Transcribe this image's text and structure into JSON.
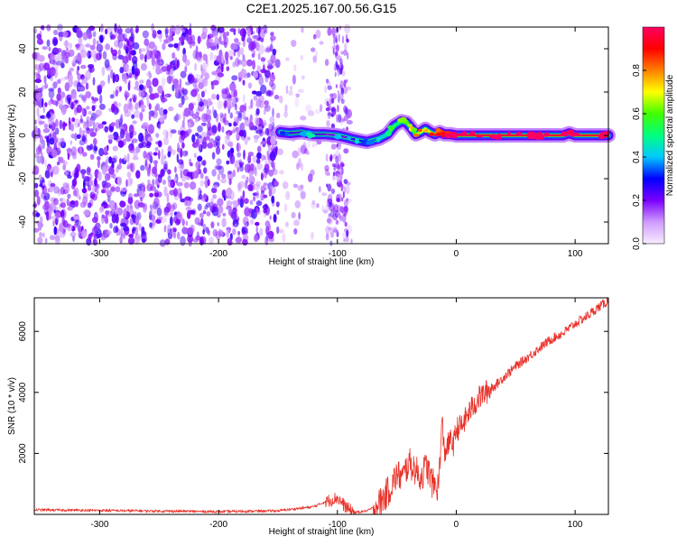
{
  "title": "C2E1.2025.167.00.56.G15",
  "colors": {
    "snr_line": "#e8322a",
    "spectrogram_noise": "#6a00e8",
    "axis": "#000000"
  },
  "chart_data": [
    {
      "type": "heatmap",
      "title": "C2E1.2025.167.00.56.G15",
      "xlabel": "Height of straight line (km)",
      "ylabel": "Frequency (Hz)",
      "xlim": [
        -355,
        128
      ],
      "ylim": [
        -50,
        50
      ],
      "xticks": [
        -300,
        -200,
        -100,
        0,
        100
      ],
      "yticks": [
        -40,
        -20,
        0,
        20,
        40
      ],
      "grid": false,
      "colorbar": {
        "label": "Normalized spectral amplitude",
        "range": [
          0,
          1
        ],
        "ticks": [
          0.0,
          0.2,
          0.4,
          0.6,
          0.8
        ],
        "tick_labels": [
          "0.0",
          "0.2",
          "0.4",
          "0.6",
          "0.8"
        ],
        "colormap": "hsv-rainbow",
        "colormap_stops": [
          "#f8ecff",
          "#cf9bff",
          "#7b00ff",
          "#0000ff",
          "#00c8ff",
          "#00ff80",
          "#40ff00",
          "#ffff00",
          "#ff8000",
          "#ff0000",
          "#ff0060"
        ]
      },
      "signal_trace": {
        "x": [
          -148,
          -140,
          -130,
          -120,
          -110,
          -100,
          -92,
          -85,
          -75,
          -65,
          -58,
          -52,
          -46,
          -42,
          -38,
          -34,
          -30,
          -26,
          -22,
          -18,
          -14,
          -10,
          -5,
          0,
          10,
          20,
          30,
          40,
          50,
          60,
          70,
          80,
          90,
          95,
          100,
          110,
          120,
          128
        ],
        "y": [
          1.5,
          1.0,
          1.5,
          0.5,
          0.5,
          0.0,
          -1.0,
          -2.0,
          -3.0,
          -1.5,
          0.5,
          4.5,
          6.5,
          6.0,
          3.5,
          0.5,
          1.5,
          3.0,
          1.5,
          0.5,
          1.5,
          0.5,
          0.5,
          0.0,
          0.0,
          0.0,
          0.0,
          0.0,
          0.0,
          0.0,
          0.0,
          0.0,
          0.0,
          1.0,
          0.0,
          0.0,
          0.0,
          0.0
        ],
        "amplitude": [
          0.2,
          0.25,
          0.3,
          0.25,
          0.2,
          0.2,
          0.25,
          0.3,
          0.35,
          0.4,
          0.45,
          0.5,
          0.55,
          0.6,
          0.6,
          0.65,
          0.7,
          0.7,
          0.75,
          0.8,
          0.8,
          0.85,
          0.9,
          0.9,
          0.95,
          0.95,
          0.95,
          0.95,
          0.95,
          0.95,
          0.95,
          0.95,
          0.95,
          0.95,
          0.95,
          0.95,
          0.95,
          0.95
        ]
      },
      "noise_regions": [
        {
          "x": [
            -355,
            -150
          ],
          "level": "dense"
        },
        {
          "x": [
            -150,
            -88
          ],
          "level": "sparse"
        }
      ]
    },
    {
      "type": "line",
      "xlabel": "Height of straight line (km)",
      "ylabel": "SNR (10 * v/v)",
      "xlim": [
        -355,
        128
      ],
      "ylim": [
        0,
        7100
      ],
      "xticks": [
        -300,
        -200,
        -100,
        0,
        100
      ],
      "yticks": [
        2000,
        4000,
        6000
      ],
      "grid": false,
      "series": [
        {
          "x": [
            -355,
            -300,
            -250,
            -200,
            -150,
            -120,
            -110,
            -100,
            -95,
            -90,
            -85,
            -80,
            -75,
            -70,
            -65,
            -60,
            -55,
            -50,
            -45,
            -40,
            -35,
            -30,
            -25,
            -20,
            -15,
            -12,
            -10,
            -8,
            -5,
            -2,
            0,
            5,
            10,
            15,
            20,
            25,
            30,
            35,
            40,
            50,
            60,
            70,
            80,
            90,
            100,
            110,
            120,
            128
          ],
          "y": [
            150,
            130,
            110,
            90,
            120,
            250,
            420,
            550,
            320,
            150,
            60,
            90,
            120,
            220,
            350,
            600,
            900,
            1300,
            1200,
            1700,
            1500,
            1200,
            1600,
            1000,
            900,
            3000,
            2000,
            2200,
            2400,
            2300,
            2800,
            2900,
            3300,
            3600,
            3850,
            4000,
            4150,
            4300,
            4500,
            4850,
            5150,
            5450,
            5750,
            5950,
            6250,
            6500,
            6800,
            7000
          ]
        }
      ]
    }
  ]
}
